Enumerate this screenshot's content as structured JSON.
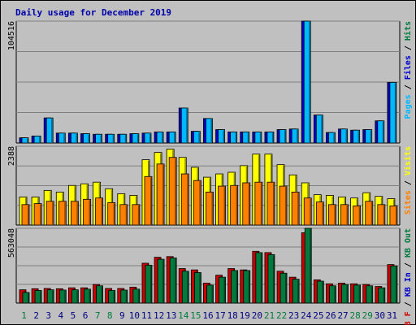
{
  "chart_data": {
    "title": "Daily usage for December 2019",
    "days": [
      "1",
      "2",
      "3",
      "4",
      "5",
      "6",
      "7",
      "8",
      "9",
      "10",
      "11",
      "12",
      "13",
      "14",
      "15",
      "16",
      "17",
      "18",
      "19",
      "20",
      "21",
      "22",
      "23",
      "24",
      "25",
      "26",
      "27",
      "28",
      "29",
      "30",
      "31"
    ],
    "weekend_days": [
      "1",
      "7",
      "8",
      "14",
      "15",
      "21",
      "22",
      "28",
      "29"
    ],
    "panels": [
      {
        "type": "bar",
        "max_label": "104516",
        "ylim": [
          0,
          104516
        ],
        "right_label_parts": [
          {
            "text": "Pages",
            "color": "#00b8ff"
          },
          {
            "text": " / ",
            "color": "#000000"
          },
          {
            "text": "Files",
            "color": "#0000cc"
          },
          {
            "text": " / ",
            "color": "#000000"
          },
          {
            "text": "Hits",
            "color": "#007a3d"
          }
        ],
        "series": [
          {
            "name": "Hits",
            "color": "#007a3d",
            "values": []
          },
          {
            "name": "Files",
            "color": "#0000cc",
            "values": [
              4500,
              6000,
              21500,
              8500,
              8500,
              8000,
              7500,
              7500,
              7500,
              8000,
              8500,
              9500,
              9500,
              30000,
              10000,
              21000,
              11500,
              9500,
              9500,
              9500,
              9500,
              11500,
              12000,
              104516,
              24000,
              9000,
              12000,
              11000,
              11500,
              19000,
              52000
            ]
          },
          {
            "name": "Pages",
            "color": "#00b8ff",
            "values": [
              4500,
              6000,
              21500,
              8500,
              8500,
              8000,
              7500,
              7500,
              7500,
              8000,
              8500,
              9500,
              9500,
              30000,
              10000,
              21000,
              11500,
              9500,
              9500,
              9500,
              9500,
              11500,
              12000,
              104516,
              24000,
              9000,
              12000,
              11000,
              11500,
              19000,
              52000
            ]
          }
        ]
      },
      {
        "type": "bar",
        "max_label": "2388",
        "ylim": [
          0,
          2388
        ],
        "right_label_parts": [
          {
            "text": "Sites",
            "color": "#ff8000"
          },
          {
            "text": " / ",
            "color": "#000000"
          },
          {
            "text": "Visits",
            "color": "#ffff00"
          }
        ],
        "series": [
          {
            "name": "Visits",
            "color": "#ffff00",
            "values": [
              850,
              850,
              1050,
              1000,
              1200,
              1250,
              1300,
              1100,
              950,
              900,
              1980,
              2200,
              2300,
              2050,
              1750,
              1450,
              1550,
              1600,
              1800,
              2150,
              2150,
              1830,
              1520,
              1280,
              920,
              900,
              850,
              820,
              980,
              870,
              800
            ]
          },
          {
            "name": "Sites",
            "color": "#ff8000",
            "values": [
              620,
              650,
              720,
              720,
              720,
              780,
              820,
              680,
              620,
              620,
              1470,
              1850,
              2050,
              1550,
              1350,
              1000,
              1180,
              1200,
              1280,
              1300,
              1300,
              1180,
              1000,
              820,
              700,
              620,
              620,
              580,
              720,
              620,
              580
            ]
          }
        ]
      },
      {
        "type": "bar",
        "max_label": "563048",
        "ylim": [
          0,
          563048
        ],
        "right_label_parts": [
          {
            "text": "KB F",
            "color": "#cc0000"
          },
          {
            "text": " / ",
            "color": "#000000"
          },
          {
            "text": "KB In",
            "color": "#0000cc"
          },
          {
            "text": " / ",
            "color": "#000000"
          },
          {
            "text": "KB Out",
            "color": "#007a3d"
          }
        ],
        "series": [
          {
            "name": "KB F",
            "color": "#cc0000",
            "values": [
              100000,
              108000,
              110000,
              108000,
              115000,
              115000,
              140000,
              110000,
              110000,
              120000,
              300000,
              345000,
              350000,
              260000,
              250000,
              150000,
              210000,
              260000,
              250000,
              390000,
              380000,
              240000,
              195000,
              530000,
              175000,
              145000,
              150000,
              145000,
              140000,
              125000,
              290000
            ]
          },
          {
            "name": "KB In",
            "color": "#0000cc",
            "values": [
              0,
              0,
              0,
              0,
              0,
              0,
              0,
              0,
              0,
              0,
              0,
              0,
              0,
              0,
              0,
              0,
              0,
              0,
              0,
              0,
              0,
              0,
              0,
              0,
              0,
              0,
              0,
              0,
              0,
              0,
              0
            ]
          },
          {
            "name": "KB Out",
            "color": "#007a3d",
            "values": [
              80000,
              95000,
              100000,
              98000,
              100000,
              105000,
              130000,
              95000,
              98000,
              105000,
              285000,
              330000,
              340000,
              240000,
              230000,
              135000,
              195000,
              245000,
              245000,
              380000,
              365000,
              225000,
              180000,
              563048,
              165000,
              130000,
              140000,
              135000,
              130000,
              115000,
              280000
            ]
          }
        ]
      }
    ]
  }
}
